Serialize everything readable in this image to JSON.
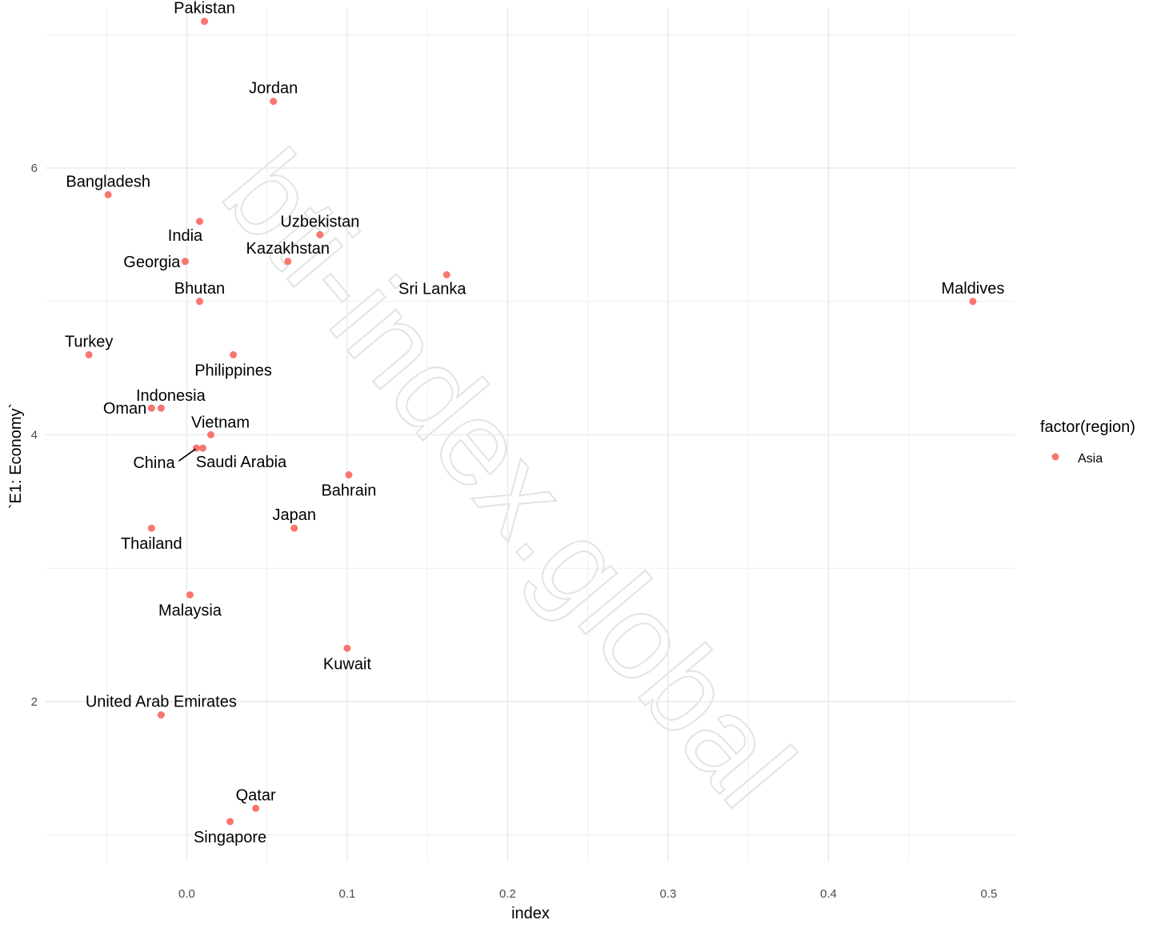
{
  "chart_data": {
    "type": "scatter",
    "xlabel": "index",
    "ylabel": "`E1: Economy`",
    "xlim": [
      -0.088,
      0.516
    ],
    "ylim": [
      0.8,
      7.2
    ],
    "x_ticks": [
      0.0,
      0.1,
      0.2,
      0.3,
      0.4,
      0.5
    ],
    "x_tick_labels": [
      "0.0",
      "0.1",
      "0.2",
      "0.3",
      "0.4",
      "0.5"
    ],
    "y_ticks": [
      2,
      4,
      6
    ],
    "y_tick_labels": [
      "2",
      "4",
      "6"
    ],
    "grid": true,
    "color": "#F8766D",
    "legend": {
      "title": "factor(region)",
      "position": "right",
      "entries": [
        "Asia"
      ]
    },
    "watermark": "bti-index.global",
    "points": [
      {
        "label": "Pakistan",
        "x": 0.011,
        "y": 7.1,
        "label_pos": "above"
      },
      {
        "label": "Jordan",
        "x": 0.054,
        "y": 6.5,
        "label_pos": "above"
      },
      {
        "label": "Bangladesh",
        "x": -0.049,
        "y": 5.8,
        "label_pos": "above"
      },
      {
        "label": "India",
        "x": 0.008,
        "y": 5.6,
        "label_pos": "below-left"
      },
      {
        "label": "Uzbekistan",
        "x": 0.083,
        "y": 5.5,
        "label_pos": "above"
      },
      {
        "label": "Georgia",
        "x": -0.001,
        "y": 5.3,
        "label_pos": "left"
      },
      {
        "label": "Kazakhstan",
        "x": 0.063,
        "y": 5.3,
        "label_pos": "above"
      },
      {
        "label": "Sri Lanka",
        "x": 0.162,
        "y": 5.2,
        "label_pos": "below-left"
      },
      {
        "label": "Bhutan",
        "x": 0.008,
        "y": 5.0,
        "label_pos": "above"
      },
      {
        "label": "Maldives",
        "x": 0.49,
        "y": 5.0,
        "label_pos": "above"
      },
      {
        "label": "Turkey",
        "x": -0.061,
        "y": 4.6,
        "label_pos": "above"
      },
      {
        "label": "Philippines",
        "x": 0.029,
        "y": 4.6,
        "label_pos": "below"
      },
      {
        "label": "Indonesia",
        "x": -0.016,
        "y": 4.2,
        "label_pos": "above-right"
      },
      {
        "label": "Oman",
        "x": -0.022,
        "y": 4.2,
        "label_pos": "left"
      },
      {
        "label": "Vietnam",
        "x": 0.015,
        "y": 4.0,
        "label_pos": "above-right"
      },
      {
        "label": "China",
        "x": 0.006,
        "y": 3.9,
        "label_pos": "leader-left"
      },
      {
        "label": "Saudi Arabia",
        "x": 0.01,
        "y": 3.9,
        "label_pos": "below-right"
      },
      {
        "label": "Bahrain",
        "x": 0.101,
        "y": 3.7,
        "label_pos": "below"
      },
      {
        "label": "Japan",
        "x": 0.067,
        "y": 3.3,
        "label_pos": "above"
      },
      {
        "label": "Thailand",
        "x": -0.022,
        "y": 3.3,
        "label_pos": "below"
      },
      {
        "label": "Malaysia",
        "x": 0.002,
        "y": 2.8,
        "label_pos": "below"
      },
      {
        "label": "Kuwait",
        "x": 0.1,
        "y": 2.4,
        "label_pos": "below"
      },
      {
        "label": "United Arab Emirates",
        "x": -0.016,
        "y": 1.9,
        "label_pos": "above"
      },
      {
        "label": "Qatar",
        "x": 0.043,
        "y": 1.2,
        "label_pos": "above"
      },
      {
        "label": "Singapore",
        "x": 0.027,
        "y": 1.1,
        "label_pos": "below"
      }
    ]
  }
}
